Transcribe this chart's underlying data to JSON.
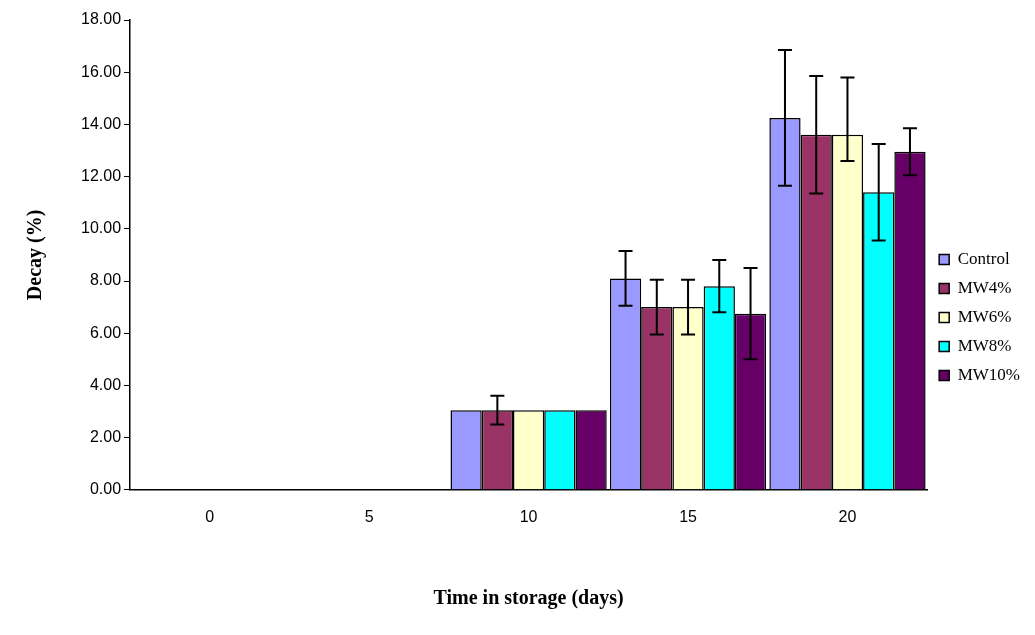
{
  "chart_data": {
    "type": "bar",
    "xlabel": "Time in storage (days)",
    "ylabel": "Decay (%)",
    "categories": [
      "0",
      "5",
      "10",
      "15",
      "20"
    ],
    "series": [
      {
        "name": "Control",
        "color": "#9999ff",
        "values": [
          0,
          0,
          3.05,
          8.1,
          14.25
        ],
        "errors": [
          null,
          null,
          null,
          1.05,
          2.6
        ]
      },
      {
        "name": "MW4%",
        "color": "#993366",
        "values": [
          0,
          0,
          3.05,
          7.0,
          13.6
        ],
        "errors": [
          null,
          null,
          0.55,
          1.05,
          2.25
        ]
      },
      {
        "name": "MW6%",
        "color": "#ffffcc",
        "values": [
          0,
          0,
          3.05,
          7.0,
          13.6
        ],
        "errors": [
          null,
          null,
          null,
          1.05,
          [
            12.6,
            15.8
          ]
        ]
      },
      {
        "name": "MW8%",
        "color": "#00ffff",
        "values": [
          0,
          0,
          3.05,
          7.8,
          11.4
        ],
        "errors": [
          null,
          null,
          null,
          1.0,
          1.85
        ]
      },
      {
        "name": "MW10%",
        "color": "#660066",
        "values": [
          0,
          0,
          3.05,
          6.75,
          12.95
        ],
        "errors": [
          null,
          null,
          null,
          1.75,
          0.9
        ]
      }
    ],
    "ylim": [
      0,
      18
    ],
    "yticks": [
      {
        "value": 0,
        "label": "0.00"
      },
      {
        "value": 2,
        "label": "2.00"
      },
      {
        "value": 4,
        "label": "4.00"
      },
      {
        "value": 6,
        "label": "6.00"
      },
      {
        "value": 8,
        "label": "8.00"
      },
      {
        "value": 10,
        "label": "10.00"
      },
      {
        "value": 12,
        "label": "12.00"
      },
      {
        "value": 14,
        "label": "14.00"
      },
      {
        "value": 16,
        "label": "16.00"
      },
      {
        "value": 18,
        "label": "18.00"
      }
    ],
    "grid": false,
    "legend": "right"
  }
}
